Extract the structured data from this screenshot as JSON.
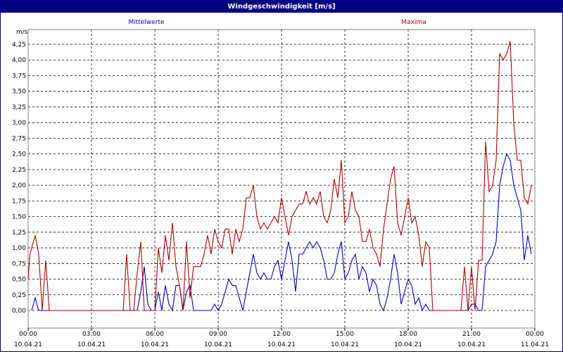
{
  "window": {
    "title": "Windgeschwindigkeit [m/s]"
  },
  "colors": {
    "titlebar": "#000080",
    "mean": "#0000c0",
    "max": "#b00000",
    "grid": "#000000"
  },
  "chart_data": {
    "type": "line",
    "title": "Windgeschwindigkeit [m/s]",
    "ylabel": "m/s",
    "xlabel": "",
    "ylim": [
      0,
      4.25
    ],
    "xlim_hours": [
      0,
      24
    ],
    "yticks": [
      "0,00",
      "0,25",
      "0,50",
      "0,75",
      "1,00",
      "1,25",
      "1,50",
      "1,75",
      "2,00",
      "2,25",
      "2,50",
      "2,75",
      "3,00",
      "3,25",
      "3,50",
      "3,75",
      "4,00",
      "4,25"
    ],
    "xticks": [
      {
        "time": "00:00",
        "date": "10.04.21"
      },
      {
        "time": "03:00",
        "date": "10.04.21"
      },
      {
        "time": "06:00",
        "date": "10.04.21"
      },
      {
        "time": "09:00",
        "date": "10.04.21"
      },
      {
        "time": "12:00",
        "date": "10.04.21"
      },
      {
        "time": "15:00",
        "date": "10.04.21"
      },
      {
        "time": "18:00",
        "date": "10.04.21"
      },
      {
        "time": "21:00",
        "date": "10.04.21"
      },
      {
        "time": "00:00",
        "date": "11.04.21"
      }
    ],
    "grid": true,
    "legend_placement": "top",
    "series": [
      {
        "name": "Mittelwerte",
        "color": "#0000c0",
        "points": [
          [
            "00:10",
            0
          ],
          [
            "00:20",
            0.2
          ],
          [
            "00:30",
            0
          ],
          [
            "00:40",
            0
          ],
          [
            "01:00",
            0
          ],
          [
            "04:30",
            0
          ],
          [
            "04:40",
            0
          ],
          [
            "04:50",
            0
          ],
          [
            "05:00",
            0
          ],
          [
            "05:10",
            0
          ],
          [
            "05:20",
            0.3
          ],
          [
            "05:30",
            0.7
          ],
          [
            "05:40",
            0.1
          ],
          [
            "05:50",
            0
          ],
          [
            "06:00",
            0
          ],
          [
            "06:10",
            0.3
          ],
          [
            "06:20",
            0
          ],
          [
            "06:30",
            0.4
          ],
          [
            "06:40",
            0.1
          ],
          [
            "06:50",
            0
          ],
          [
            "07:00",
            0.4
          ],
          [
            "07:10",
            0.4
          ],
          [
            "07:20",
            0
          ],
          [
            "07:30",
            0.3
          ],
          [
            "07:40",
            0.4
          ],
          [
            "07:50",
            0
          ],
          [
            "08:00",
            0
          ],
          [
            "08:10",
            0
          ],
          [
            "08:20",
            0
          ],
          [
            "08:30",
            0
          ],
          [
            "08:40",
            0
          ],
          [
            "08:50",
            0.1
          ],
          [
            "09:00",
            0
          ],
          [
            "09:10",
            0.1
          ],
          [
            "09:20",
            0.3
          ],
          [
            "09:30",
            0.5
          ],
          [
            "09:40",
            0.4
          ],
          [
            "09:50",
            0.4
          ],
          [
            "10:00",
            0.2
          ],
          [
            "10:10",
            0
          ],
          [
            "10:20",
            0.3
          ],
          [
            "10:30",
            0.6
          ],
          [
            "10:40",
            0.9
          ],
          [
            "10:50",
            0.6
          ],
          [
            "11:00",
            0.5
          ],
          [
            "11:10",
            0.6
          ],
          [
            "11:20",
            0.5
          ],
          [
            "11:30",
            0.5
          ],
          [
            "11:40",
            0.7
          ],
          [
            "11:50",
            0.8
          ],
          [
            "12:00",
            0.5
          ],
          [
            "12:10",
            0.8
          ],
          [
            "12:20",
            1.1
          ],
          [
            "12:30",
            0.8
          ],
          [
            "12:40",
            0.3
          ],
          [
            "12:50",
            0.9
          ],
          [
            "13:00",
            0.9
          ],
          [
            "13:10",
            1.0
          ],
          [
            "13:20",
            1.1
          ],
          [
            "13:30",
            1.0
          ],
          [
            "13:40",
            1.1
          ],
          [
            "13:50",
            1.0
          ],
          [
            "14:00",
            0.8
          ],
          [
            "14:10",
            0.5
          ],
          [
            "14:20",
            0.5
          ],
          [
            "14:30",
            0.6
          ],
          [
            "14:40",
            0.9
          ],
          [
            "14:50",
            1.1
          ],
          [
            "15:00",
            0.5
          ],
          [
            "15:10",
            0.6
          ],
          [
            "15:20",
            0.8
          ],
          [
            "15:30",
            0.9
          ],
          [
            "15:40",
            0.5
          ],
          [
            "15:50",
            0.7
          ],
          [
            "16:00",
            0.6
          ],
          [
            "16:10",
            0.3
          ],
          [
            "16:20",
            0.5
          ],
          [
            "16:30",
            0.4
          ],
          [
            "16:40",
            0.1
          ],
          [
            "16:50",
            0
          ],
          [
            "17:00",
            0.2
          ],
          [
            "17:10",
            0.5
          ],
          [
            "17:20",
            0.9
          ],
          [
            "17:30",
            0.6
          ],
          [
            "17:40",
            0.1
          ],
          [
            "17:50",
            0.3
          ],
          [
            "18:00",
            0.5
          ],
          [
            "18:10",
            0.4
          ],
          [
            "18:20",
            0.1
          ],
          [
            "18:30",
            0.2
          ],
          [
            "18:40",
            0
          ],
          [
            "18:50",
            0.1
          ],
          [
            "19:00",
            0
          ],
          [
            "19:10",
            0
          ],
          [
            "19:30",
            0
          ],
          [
            "20:30",
            0
          ],
          [
            "20:40",
            0
          ],
          [
            "20:50",
            0
          ],
          [
            "21:00",
            0.1
          ],
          [
            "21:10",
            0.1
          ],
          [
            "21:20",
            0
          ],
          [
            "21:30",
            0
          ],
          [
            "21:40",
            0.7
          ],
          [
            "21:50",
            0.8
          ],
          [
            "22:00",
            0.9
          ],
          [
            "22:10",
            1.1
          ],
          [
            "22:20",
            2.0
          ],
          [
            "22:30",
            2.3
          ],
          [
            "22:40",
            2.5
          ],
          [
            "22:50",
            2.4
          ],
          [
            "23:00",
            2.0
          ],
          [
            "23:10",
            1.8
          ],
          [
            "23:20",
            1.6
          ],
          [
            "23:30",
            0.8
          ],
          [
            "23:40",
            1.2
          ],
          [
            "23:50",
            0.9
          ]
        ]
      },
      {
        "name": "Maxima",
        "color": "#b00000",
        "points": [
          [
            "00:00",
            0.5
          ],
          [
            "00:05",
            0.9
          ],
          [
            "00:20",
            1.2
          ],
          [
            "00:30",
            0.9
          ],
          [
            "00:40",
            0
          ],
          [
            "00:50",
            0.8
          ],
          [
            "01:00",
            0
          ],
          [
            "04:30",
            0
          ],
          [
            "04:40",
            0.9
          ],
          [
            "04:50",
            0
          ],
          [
            "05:00",
            0
          ],
          [
            "05:10",
            0.6
          ],
          [
            "05:20",
            1.1
          ],
          [
            "05:30",
            0
          ],
          [
            "05:40",
            0
          ],
          [
            "05:50",
            0
          ],
          [
            "06:00",
            0
          ],
          [
            "06:10",
            1.0
          ],
          [
            "06:20",
            0.6
          ],
          [
            "06:30",
            1.2
          ],
          [
            "06:40",
            0.8
          ],
          [
            "06:50",
            1.4
          ],
          [
            "07:00",
            0.7
          ],
          [
            "07:10",
            0.4
          ],
          [
            "07:20",
            0
          ],
          [
            "07:30",
            1.1
          ],
          [
            "07:40",
            0.2
          ],
          [
            "07:50",
            0.7
          ],
          [
            "08:00",
            0.7
          ],
          [
            "08:10",
            0.7
          ],
          [
            "08:20",
            0.9
          ],
          [
            "08:30",
            1.2
          ],
          [
            "08:40",
            0.9
          ],
          [
            "08:50",
            1.3
          ],
          [
            "09:00",
            1.1
          ],
          [
            "09:10",
            1.0
          ],
          [
            "09:20",
            1.3
          ],
          [
            "09:30",
            1.3
          ],
          [
            "09:40",
            0.9
          ],
          [
            "09:50",
            1.3
          ],
          [
            "10:00",
            1.1
          ],
          [
            "10:10",
            1.3
          ],
          [
            "10:20",
            1.8
          ],
          [
            "10:30",
            1.8
          ],
          [
            "10:40",
            2.0
          ],
          [
            "10:50",
            1.5
          ],
          [
            "11:00",
            1.3
          ],
          [
            "11:10",
            1.4
          ],
          [
            "11:20",
            1.3
          ],
          [
            "11:30",
            1.4
          ],
          [
            "11:40",
            1.5
          ],
          [
            "11:50",
            1.4
          ],
          [
            "12:00",
            1.8
          ],
          [
            "12:10",
            1.5
          ],
          [
            "12:20",
            1.2
          ],
          [
            "12:30",
            1.5
          ],
          [
            "12:40",
            1.6
          ],
          [
            "12:50",
            1.7
          ],
          [
            "13:00",
            1.7
          ],
          [
            "13:10",
            1.9
          ],
          [
            "13:20",
            1.7
          ],
          [
            "13:30",
            1.8
          ],
          [
            "13:40",
            1.7
          ],
          [
            "13:50",
            1.9
          ],
          [
            "14:00",
            1.5
          ],
          [
            "14:10",
            1.4
          ],
          [
            "14:20",
            1.6
          ],
          [
            "14:30",
            2.1
          ],
          [
            "14:40",
            1.8
          ],
          [
            "14:50",
            2.4
          ],
          [
            "15:00",
            1.4
          ],
          [
            "15:10",
            1.5
          ],
          [
            "15:20",
            1.9
          ],
          [
            "15:30",
            1.6
          ],
          [
            "15:40",
            1.5
          ],
          [
            "15:50",
            1.1
          ],
          [
            "16:00",
            1.1
          ],
          [
            "16:10",
            1.3
          ],
          [
            "16:20",
            1.0
          ],
          [
            "16:30",
            0.9
          ],
          [
            "16:40",
            0.7
          ],
          [
            "16:50",
            1.3
          ],
          [
            "17:00",
            1.7
          ],
          [
            "17:10",
            2.1
          ],
          [
            "17:20",
            2.3
          ],
          [
            "17:30",
            1.4
          ],
          [
            "17:40",
            1.2
          ],
          [
            "17:50",
            1.5
          ],
          [
            "18:00",
            1.8
          ],
          [
            "18:10",
            1.4
          ],
          [
            "18:20",
            1.5
          ],
          [
            "18:30",
            1.2
          ],
          [
            "18:40",
            0.7
          ],
          [
            "18:50",
            1.1
          ],
          [
            "19:00",
            1.0
          ],
          [
            "19:10",
            0
          ],
          [
            "19:30",
            0
          ],
          [
            "20:30",
            0
          ],
          [
            "20:40",
            0.7
          ],
          [
            "20:50",
            0
          ],
          [
            "21:00",
            0.7
          ],
          [
            "21:10",
            0
          ],
          [
            "21:20",
            0.8
          ],
          [
            "21:30",
            0.8
          ],
          [
            "21:40",
            2.7
          ],
          [
            "21:50",
            1.9
          ],
          [
            "22:00",
            2.0
          ],
          [
            "22:10",
            2.4
          ],
          [
            "22:20",
            4.1
          ],
          [
            "22:30",
            4.0
          ],
          [
            "22:40",
            4.1
          ],
          [
            "22:50",
            4.3
          ],
          [
            "23:00",
            3.0
          ],
          [
            "23:10",
            2.4
          ],
          [
            "23:20",
            2.4
          ],
          [
            "23:30",
            1.8
          ],
          [
            "23:40",
            1.7
          ],
          [
            "23:50",
            2.0
          ]
        ]
      }
    ]
  }
}
